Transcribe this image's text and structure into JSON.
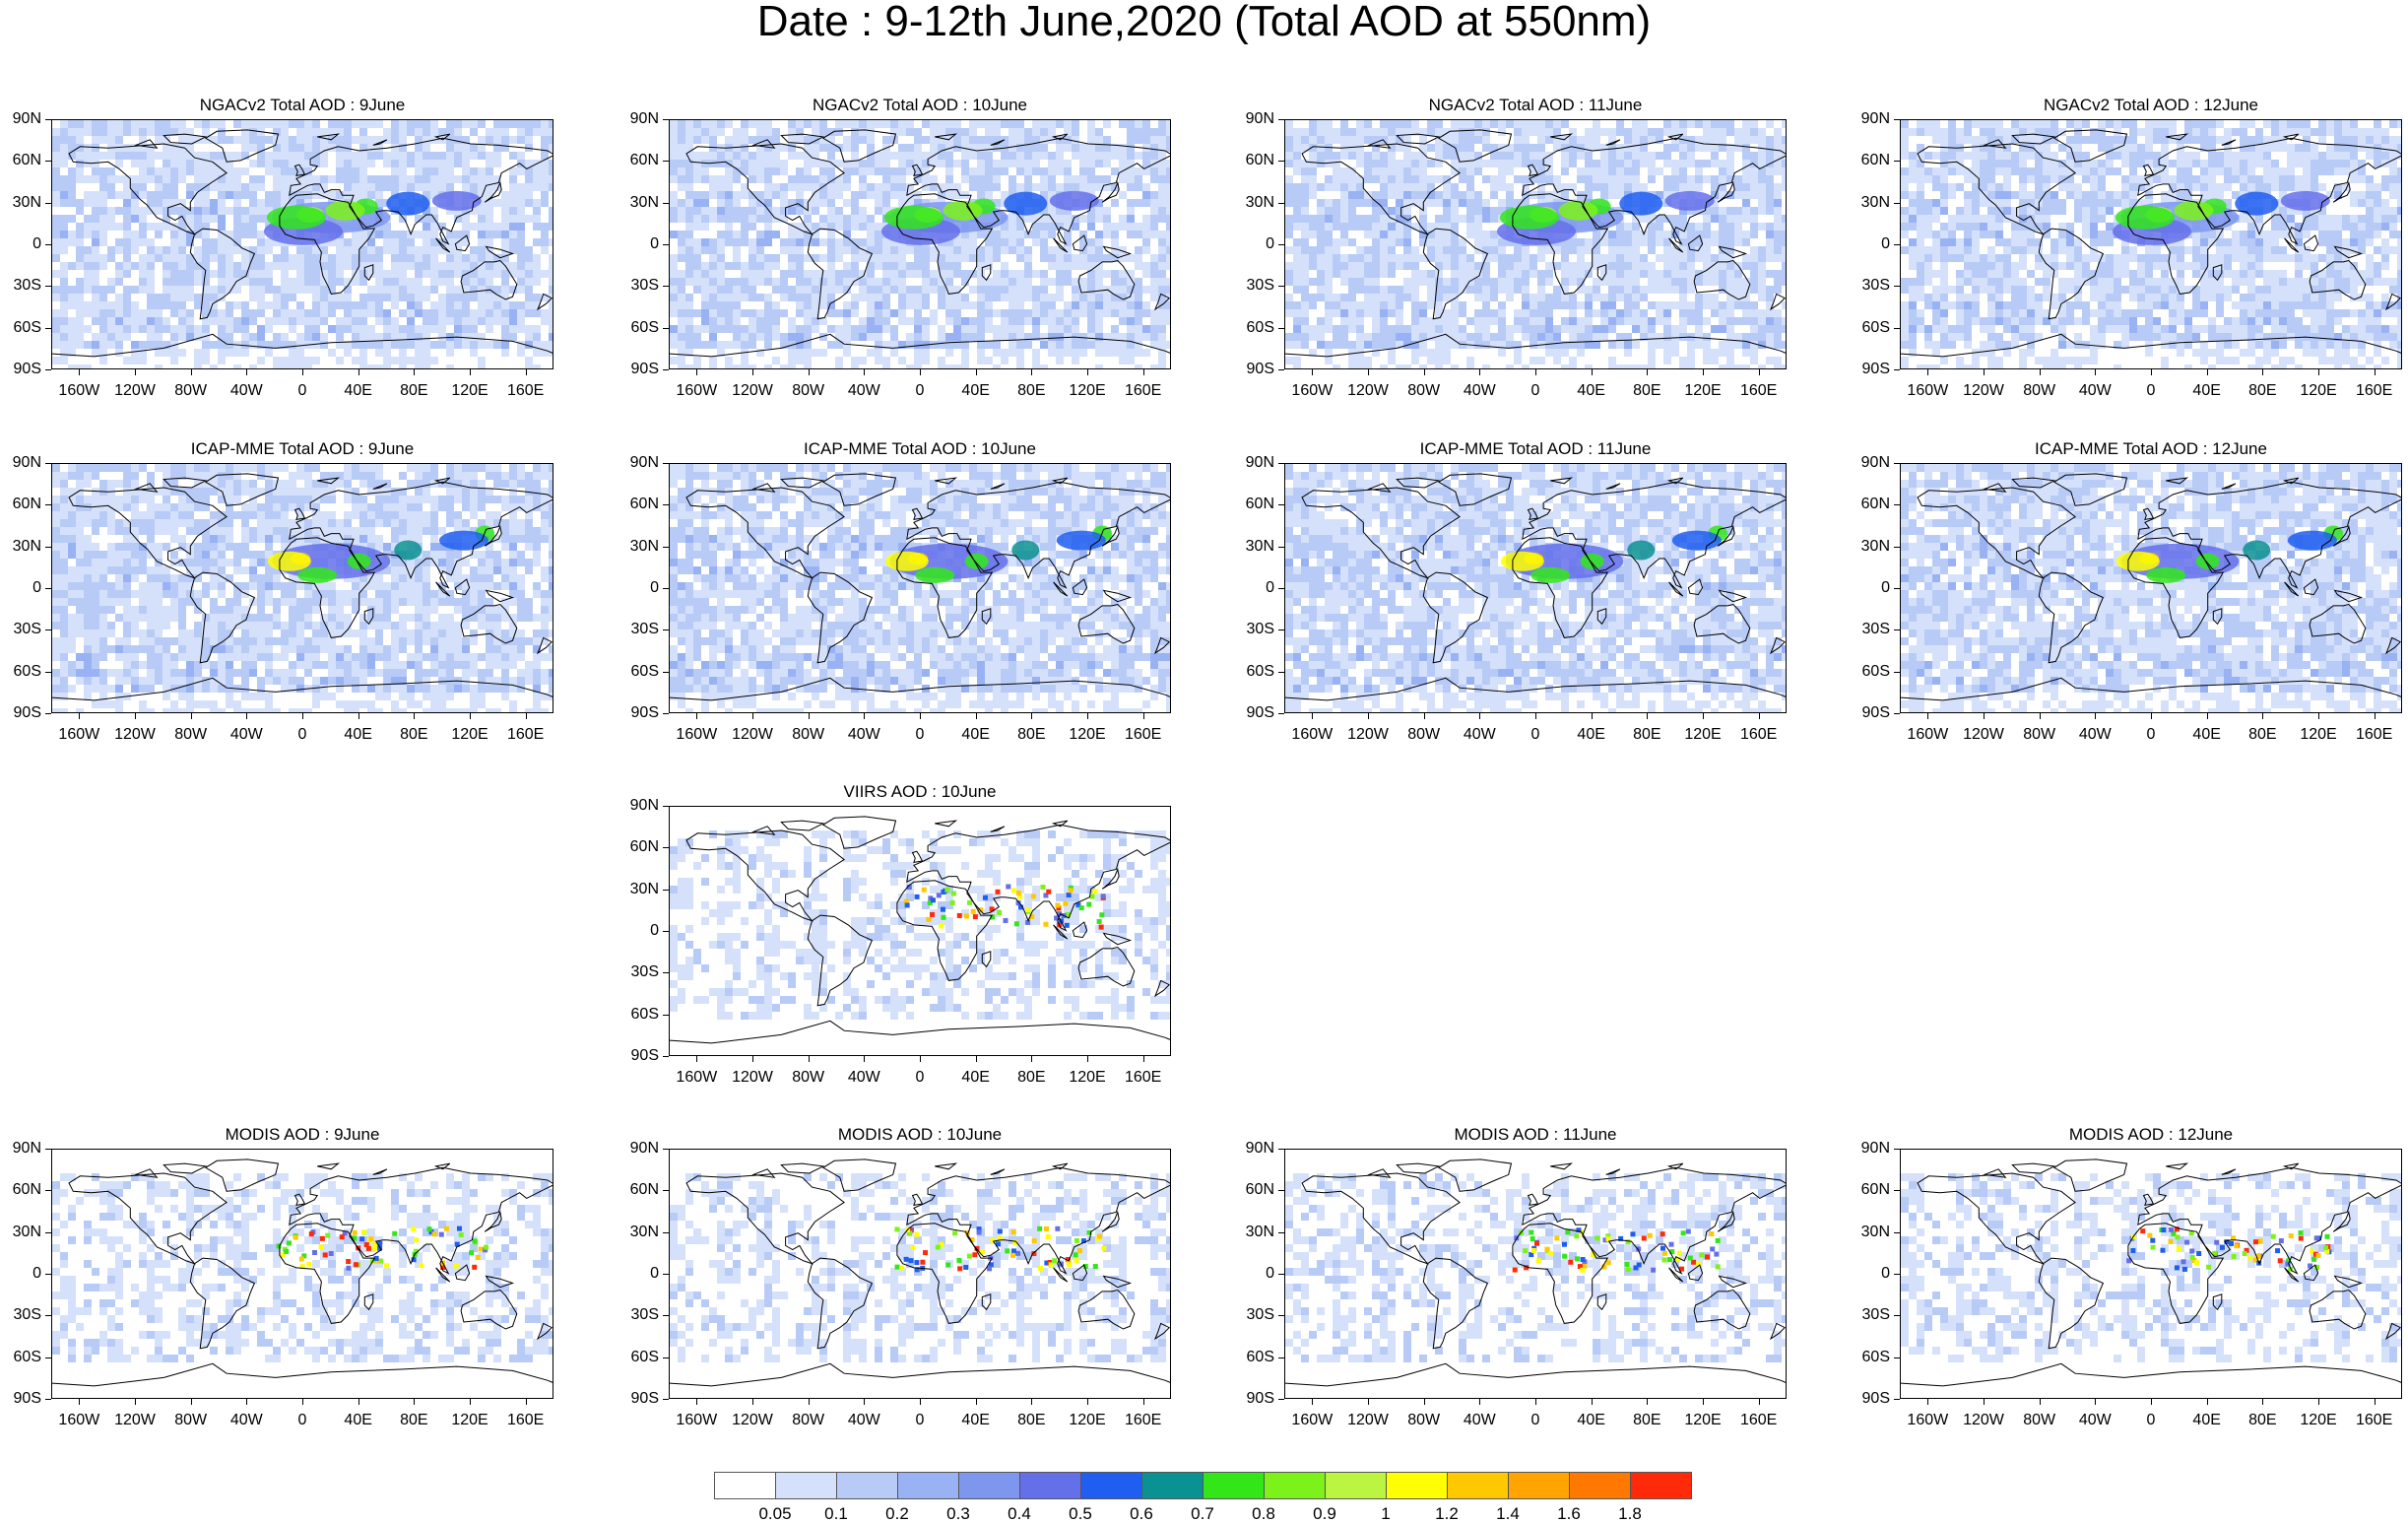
{
  "title": "Date : 9-12th June,2020 (Total AOD at 550nm)",
  "lat_labels": [
    "90N",
    "60N",
    "30N",
    "0",
    "30S",
    "60S",
    "90S"
  ],
  "lon_labels": [
    "160W",
    "120W",
    "80W",
    "40W",
    "0",
    "40E",
    "80E",
    "120E",
    "160E"
  ],
  "panels": [
    {
      "row": 0,
      "col": 0,
      "title": "NGACv2 Total AOD : 9June",
      "style": "model"
    },
    {
      "row": 0,
      "col": 1,
      "title": "NGACv2 Total AOD : 10June",
      "style": "model"
    },
    {
      "row": 0,
      "col": 2,
      "title": "NGACv2 Total AOD : 11June",
      "style": "model"
    },
    {
      "row": 0,
      "col": 3,
      "title": "NGACv2 Total AOD : 12June",
      "style": "model"
    },
    {
      "row": 1,
      "col": 0,
      "title": "ICAP-MME Total AOD : 9June",
      "style": "ensemble"
    },
    {
      "row": 1,
      "col": 1,
      "title": "ICAP-MME Total AOD : 10June",
      "style": "ensemble"
    },
    {
      "row": 1,
      "col": 2,
      "title": "ICAP-MME Total AOD : 11June",
      "style": "ensemble"
    },
    {
      "row": 1,
      "col": 3,
      "title": "ICAP-MME Total AOD : 12June",
      "style": "ensemble"
    },
    {
      "row": 2,
      "col": 1,
      "title": "VIIRS AOD : 10June",
      "style": "satellite"
    },
    {
      "row": 3,
      "col": 0,
      "title": "MODIS AOD : 9June",
      "style": "satellite"
    },
    {
      "row": 3,
      "col": 1,
      "title": "MODIS AOD : 10June",
      "style": "satellite"
    },
    {
      "row": 3,
      "col": 2,
      "title": "MODIS AOD : 11June",
      "style": "satellite"
    },
    {
      "row": 3,
      "col": 3,
      "title": "MODIS AOD : 12June",
      "style": "satellite"
    }
  ],
  "colorbar": {
    "colors": [
      "#ffffff",
      "#d5e1fb",
      "#b8cbf7",
      "#98b2f3",
      "#7d96ee",
      "#6470ea",
      "#1f5ef0",
      "#0a9191",
      "#33e61a",
      "#7cf21a",
      "#bbf542",
      "#ffff00",
      "#ffc800",
      "#ffa400",
      "#ff7800",
      "#ff2a0a"
    ],
    "labels": [
      "0.05",
      "0.1",
      "0.2",
      "0.3",
      "0.4",
      "0.5",
      "0.6",
      "0.7",
      "0.8",
      "0.9",
      "1",
      "1.2",
      "1.4",
      "1.6",
      "1.8"
    ]
  }
}
